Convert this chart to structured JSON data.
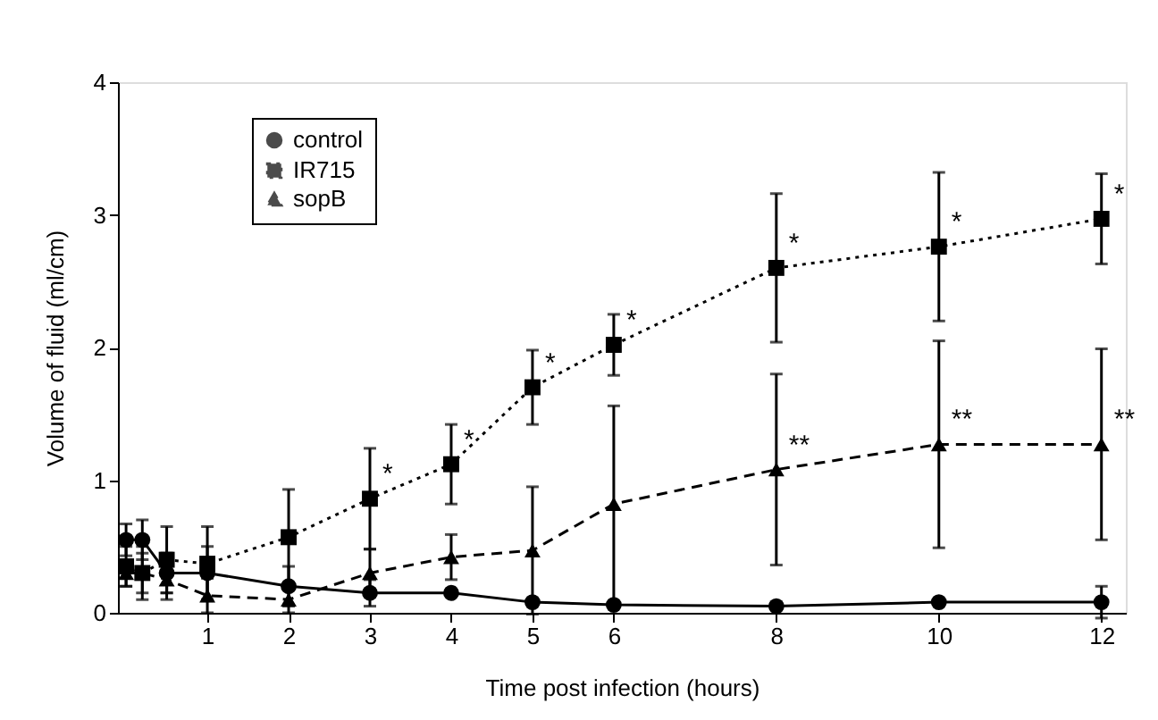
{
  "chart_data": {
    "type": "line",
    "xlabel": "Time post infection (hours)",
    "ylabel": "Volume of fluid (ml/cm)",
    "x": [
      0,
      0.2,
      0.5,
      1,
      2,
      3,
      4,
      5,
      6,
      8,
      10,
      12
    ],
    "xlim": [
      -0.1,
      12.3
    ],
    "xticks": [
      1,
      2,
      3,
      4,
      5,
      6,
      8,
      10,
      12
    ],
    "ylim": [
      0,
      4
    ],
    "yticks": [
      0,
      1,
      2,
      3,
      4
    ],
    "grid": false,
    "legend": "top left",
    "series": [
      {
        "name": "control",
        "color": "#000000",
        "marker": "circle",
        "line_style": "solid",
        "values": [
          0.55,
          0.55,
          0.3,
          0.3,
          0.2,
          0.15,
          0.15,
          0.08,
          0.06,
          0.05,
          0.08,
          0.08
        ],
        "errors": [
          0.12,
          0.15,
          0.15,
          0.2,
          0.15,
          0.1,
          null,
          null,
          null,
          null,
          null,
          0.12
        ]
      },
      {
        "name": "IR715",
        "color": "#000000",
        "marker": "square",
        "line_style": "dotted",
        "values": [
          0.35,
          0.3,
          0.4,
          0.37,
          0.57,
          0.86,
          1.12,
          1.7,
          2.02,
          2.6,
          2.76,
          2.97
        ],
        "errors": [
          0.15,
          0.2,
          0.25,
          0.28,
          0.36,
          0.38,
          0.3,
          0.28,
          0.23,
          0.56,
          0.56,
          0.34
        ]
      },
      {
        "name": "sopB",
        "color": "#000000",
        "marker": "triangle",
        "line_style": "dashed",
        "values": [
          0.3,
          0.3,
          0.25,
          0.13,
          0.1,
          0.3,
          0.42,
          0.47,
          0.82,
          1.08,
          1.27,
          1.27
        ],
        "errors": [
          0.1,
          0.15,
          0.15,
          0.13,
          0.1,
          0.18,
          0.17,
          0.48,
          0.74,
          0.72,
          0.78,
          0.72
        ]
      }
    ],
    "annotations": [
      {
        "text": "*",
        "x": 3,
        "y": 0.86
      },
      {
        "text": "*",
        "x": 4,
        "y": 1.12
      },
      {
        "text": "*",
        "x": 5,
        "y": 1.7
      },
      {
        "text": "*",
        "x": 6,
        "y": 2.02
      },
      {
        "text": "*",
        "x": 8,
        "y": 2.6
      },
      {
        "text": "*",
        "x": 10,
        "y": 2.76
      },
      {
        "text": "*",
        "x": 12,
        "y": 2.97
      },
      {
        "text": "**",
        "x": 8,
        "y": 1.08
      },
      {
        "text": "**",
        "x": 10,
        "y": 1.27
      },
      {
        "text": "**",
        "x": 12,
        "y": 1.27
      }
    ]
  }
}
